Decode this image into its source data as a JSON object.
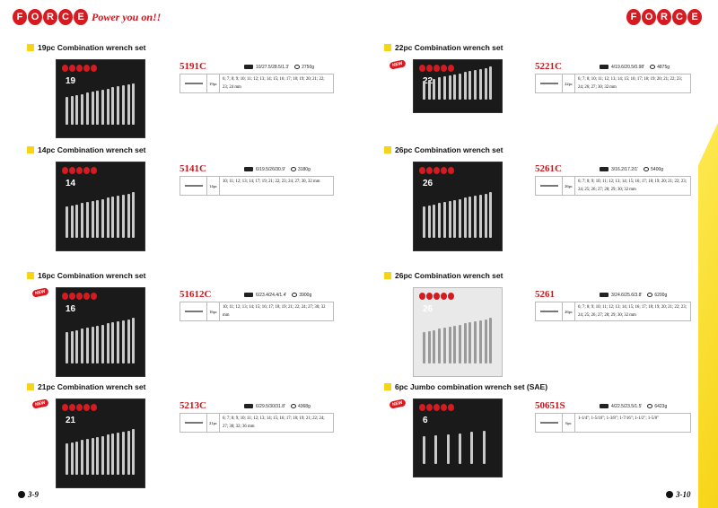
{
  "brand": {
    "logo_letters": [
      "F",
      "O",
      "R",
      "C",
      "E"
    ],
    "tagline": "Power you on!!"
  },
  "left": [
    {
      "title": "19pc Combination wrench set",
      "code": "5191C",
      "dims": "10/27.5/28.5/1.3'",
      "weight": "2750g",
      "count": "19pc",
      "sizes": "6; 7; 8; 9; 10; 11; 12; 13; 14; 15; 16; 17; 18; 19; 20; 21; 22; 23; 24 mm",
      "new": false,
      "img_label": "19"
    },
    {
      "title": "14pc Combination wrench set",
      "code": "5141C",
      "dims": "6/19.5/26/30.9'",
      "weight": "3180g",
      "count": "14pc",
      "sizes": "10; 11; 12; 13; 14; 17; 19; 21; 22; 23; 24; 27; 30, 32 mm",
      "new": false,
      "img_label": "14"
    },
    {
      "title": "16pc Combination wrench set",
      "code": "51612C",
      "dims": "6/23.4/24.4/1.4'",
      "weight": "3900g",
      "count": "16pc",
      "sizes": "10; 11; 12; 13; 14; 15; 16; 17; 18; 19; 21; 22; 24; 27; 30; 32 mm",
      "new": true,
      "img_label": "16"
    },
    {
      "title": "21pc Combination wrench set",
      "code": "5213C",
      "dims": "6/29.5/30/31.8'",
      "weight": "4368g",
      "count": "21pc",
      "sizes": "6; 7; 8; 9; 10; 11; 12; 13; 14; 15; 16; 17; 18; 19; 21; 22; 24; 27; 30; 32; 36 mm",
      "new": true,
      "img_label": "21"
    }
  ],
  "right": [
    {
      "title": "22pc Combination wrench set",
      "code": "5221C",
      "dims": "4/19.6/20.5/0.98'",
      "weight": "4875g",
      "count": "22pc",
      "sizes": "6; 7; 8; 10; 11; 12; 13; 14; 15; 16; 17; 18; 19; 20; 21; 22; 23; 24; 26; 27; 30; 32 mm",
      "new": true,
      "img_label": "22"
    },
    {
      "title": "26pc Combination wrench set",
      "code": "5261C",
      "dims": "3/16.2/17.2/1'",
      "weight": "5400g",
      "count": "26pc",
      "sizes": "6; 7; 8; 9; 10; 11; 12; 13; 14; 15; 16; 17; 18; 19; 20; 21; 22; 23; 24; 25; 26; 27; 28; 29; 30; 32 mm",
      "new": false,
      "img_label": "26"
    },
    {
      "title": "26pc Combination wrench set",
      "code": "5261",
      "dims": "3/24.6/25.6/3.8'",
      "weight": "6200g",
      "count": "26pc",
      "sizes": "6; 7; 8; 9; 10; 11; 12; 13; 14; 15; 16; 17; 18; 19; 20; 21; 22; 23; 24; 25; 26; 27; 28; 29; 30; 32 mm",
      "new": false,
      "img_label": "26"
    },
    {
      "title": "6pc Jumbo combination wrench set (SAE)",
      "code": "50651S",
      "dims": "4/22.5/23.5/1.5'",
      "weight": "6423g",
      "count": "6pc",
      "sizes": "1-1/4\"; 1-5/16\"; 1-3/8\"; 1-7/16\"; 1-1/2\"; 1-5/8\"",
      "new": true,
      "img_label": "6"
    }
  ],
  "new_label": "NEW",
  "page_numbers": {
    "left": "3-9",
    "right": "3-10"
  }
}
